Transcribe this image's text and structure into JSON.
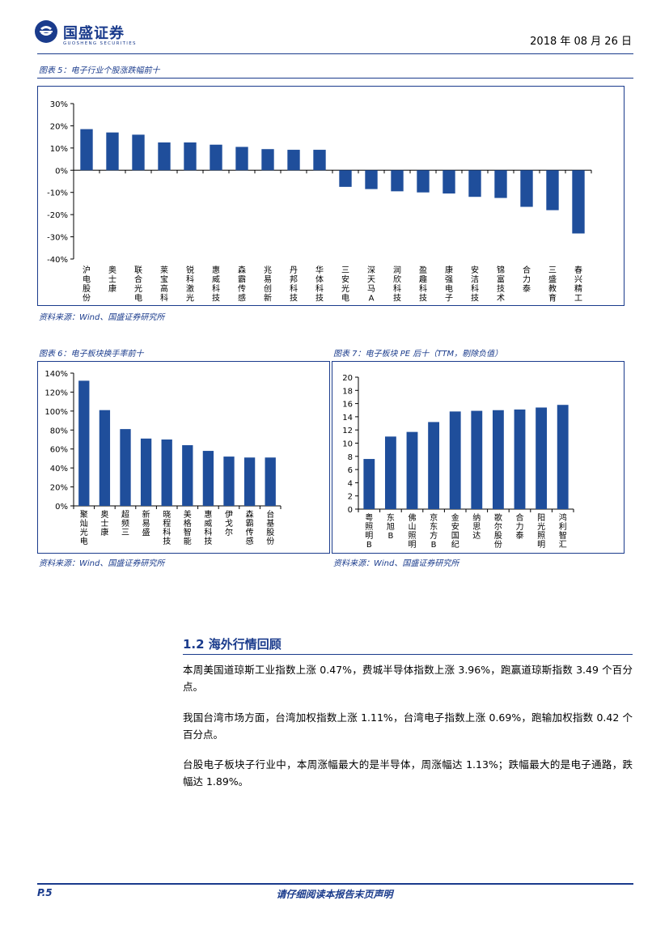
{
  "header": {
    "logo_name": "国盛证券",
    "logo_sub": "GUOSHENG SECURITIES",
    "date": "2018 年 08 月 26 日"
  },
  "figure5": {
    "caption": "图表 5：电子行业个股涨跌幅前十",
    "source": "资料来源：Wind、国盛证券研究所"
  },
  "figure6": {
    "caption": "图表 6：电子板块换手率前十",
    "source": "资料来源：Wind、国盛证券研究所"
  },
  "figure7": {
    "caption": "图表 7：电子板块 PE 后十（TTM，剔除负值）",
    "source": "资料来源：Wind、国盛证券研究所"
  },
  "section": {
    "heading": "1.2 海外行情回顾",
    "paragraphs": [
      "本周美国道琼斯工业指数上涨 0.47%，费城半导体指数上涨 3.96%，跑赢道琼斯指数 3.49 个百分点。",
      "我国台湾市场方面，台湾加权指数上涨 1.11%，台湾电子指数上涨 0.69%，跑输加权指数 0.42 个百分点。",
      "台股电子板块子行业中，本周涨幅最大的是半导体，周涨幅达 1.13%；跌幅最大的是电子通路，跌幅达 1.89%。"
    ]
  },
  "footer": {
    "page": "P.5",
    "notice": "请仔细阅读本报告末页声明"
  },
  "colors": {
    "bar": "#1f4e9b",
    "brand": "#1a3b8c"
  },
  "chart_data": [
    {
      "type": "bar",
      "categories": [
        "沪电股份",
        "奥士康",
        "联合光电",
        "莱宝高科",
        "锐科激光",
        "惠威科技",
        "森霸传感",
        "兆易创新",
        "丹邦科技",
        "华体科技",
        "三安光电",
        "深天马A",
        "润欣科技",
        "盈趣科技",
        "康强电子",
        "安洁科技",
        "锦富技术",
        "合力泰",
        "三盛教育",
        "春兴精工"
      ],
      "values": [
        18.5,
        17,
        16,
        12.5,
        12.5,
        11.5,
        10.5,
        9.5,
        9.2,
        9.2,
        -7.5,
        -8.5,
        -9.5,
        -10,
        -10.5,
        -12,
        -12.5,
        -16.5,
        -18,
        -28.5
      ],
      "ylim": [
        -40,
        30
      ],
      "yticks": [
        "30%",
        "20%",
        "10%",
        "0%",
        "-10%",
        "-20%",
        "-30%",
        "-40%"
      ],
      "unit": "%"
    },
    {
      "type": "bar",
      "categories": [
        "聚灿光电",
        "奥士康",
        "超频三",
        "新易盛",
        "晓程科技",
        "美格智能",
        "惠威科技",
        "伊戈尔",
        "森霸传感",
        "台基股份"
      ],
      "values": [
        132,
        101,
        81,
        71,
        70,
        64,
        58,
        52,
        51,
        51
      ],
      "ylim": [
        0,
        140
      ],
      "yticks": [
        "140%",
        "120%",
        "100%",
        "80%",
        "60%",
        "40%",
        "20%",
        "0%"
      ],
      "unit": "%"
    },
    {
      "type": "bar",
      "categories": [
        "粤照明B",
        "东旭B",
        "佛山照明",
        "京东方B",
        "金安国纪",
        "纳思达",
        "歌尔股份",
        "合力泰",
        "阳光照明",
        "鸿利智汇"
      ],
      "values": [
        7.6,
        11,
        11.7,
        13.2,
        14.8,
        14.9,
        15,
        15.1,
        15.4,
        15.8
      ],
      "ylim": [
        0,
        20
      ],
      "yticks": [
        "20",
        "18",
        "16",
        "14",
        "12",
        "10",
        "8",
        "6",
        "4",
        "2",
        "0"
      ],
      "unit": ""
    }
  ]
}
